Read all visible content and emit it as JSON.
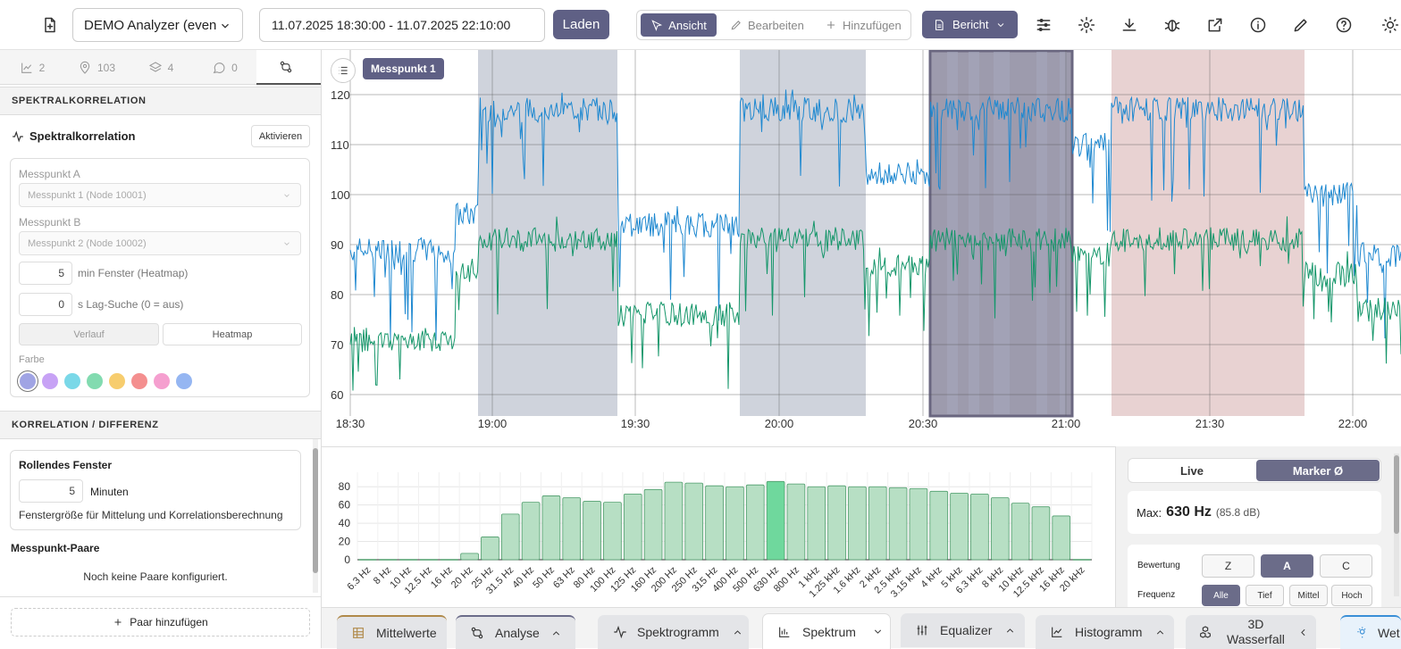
{
  "toolbar": {
    "analyzer": "DEMO Analyzer (even",
    "daterange": "11.07.2025 18:30:00 - 11.07.2025 22:10:00",
    "load": "Laden",
    "mode_view": "Ansicht",
    "mode_edit": "Bearbeiten",
    "mode_add": "Hinzufügen",
    "report": "Bericht"
  },
  "left_tabs": [
    {
      "icon": "chart-icon",
      "count": "2"
    },
    {
      "icon": "location-pin-icon",
      "count": "103"
    },
    {
      "icon": "layers-icon",
      "count": "4"
    },
    {
      "icon": "comment-icon",
      "count": "0"
    },
    {
      "icon": "correlation-icon",
      "count": ""
    }
  ],
  "spectral": {
    "section": "SPEKTRALKORRELATION",
    "title": "Spektralkorrelation",
    "activate": "Aktivieren",
    "point_a_label": "Messpunkt A",
    "point_a": "Messpunkt 1 (Node 10001)",
    "point_b_label": "Messpunkt B",
    "point_b": "Messpunkt 2 (Node 10002)",
    "window_value": "5",
    "window_label": "min Fenster (Heatmap)",
    "lag_value": "0",
    "lag_label": "s Lag-Suche (0 = aus)",
    "btn_history": "Verlauf",
    "btn_heatmap": "Heatmap",
    "color_label": "Farbe",
    "colors": [
      "#a0a4e4",
      "#c7a2f5",
      "#7ad8e8",
      "#82dbb0",
      "#f7cd6e",
      "#f48f8f",
      "#f59fcf",
      "#95b6f2"
    ]
  },
  "corr": {
    "section": "KORRELATION / DIFFERENZ",
    "rolling_title": "Rollendes Fenster",
    "rolling_value": "5",
    "rolling_unit": "Minuten",
    "rolling_desc": "Fenstergröße für Mittelung und Korrelationsberechnung",
    "pairs_title": "Messpunkt-Paare",
    "pairs_empty": "Noch keine Paare konfiguriert.",
    "add_pair": "Paar hinzufügen"
  },
  "timechart": {
    "tag": "Messpunkt 1",
    "yticks": [
      "120",
      "110",
      "100",
      "90",
      "80",
      "70",
      "60"
    ],
    "xticks": [
      "18:30",
      "19:00",
      "19:30",
      "20:00",
      "20:30",
      "21:00",
      "21:30",
      "22:00"
    ]
  },
  "chart_data": {
    "type": "bar",
    "title": "",
    "xlabel": "",
    "ylabel": "",
    "ylim": [
      0,
      90
    ],
    "yticks": [
      "80",
      "60",
      "40",
      "20",
      "0"
    ],
    "categories": [
      "6.3 Hz",
      "8 Hz",
      "10 Hz",
      "12.5 Hz",
      "16 Hz",
      "20 Hz",
      "25 Hz",
      "31.5 Hz",
      "40 Hz",
      "50 Hz",
      "63 Hz",
      "80 Hz",
      "100 Hz",
      "125 Hz",
      "160 Hz",
      "200 Hz",
      "250 Hz",
      "315 Hz",
      "400 Hz",
      "500 Hz",
      "630 Hz",
      "800 Hz",
      "1 kHz",
      "1.25 kHz",
      "1.6 kHz",
      "2 kHz",
      "2.5 kHz",
      "3.15 kHz",
      "4 kHz",
      "5 kHz",
      "6.3 kHz",
      "8 kHz",
      "10 kHz",
      "12.5 kHz",
      "16 kHz",
      "20 kHz"
    ],
    "values": [
      0,
      0,
      0,
      0,
      0,
      7,
      25,
      50,
      63,
      70,
      68,
      64,
      63,
      72,
      77,
      85,
      84,
      81,
      80,
      82,
      85.8,
      83,
      80,
      81,
      80,
      80,
      79,
      78,
      75,
      73,
      72,
      68,
      62,
      58,
      48,
      0
    ],
    "highlight": "630 Hz",
    "bar_color": "#b7dfc4",
    "highlight_color": "#6fd89d"
  },
  "spectrum_panel": {
    "live": "Live",
    "marker": "Marker Ø",
    "max_label": "Max:",
    "max_value": "630 Hz",
    "max_db": "(85.8 dB)",
    "weight_label": "Bewertung",
    "weights": [
      "Z",
      "A",
      "C"
    ],
    "freq_label": "Frequenz",
    "freqs": [
      "Alle",
      "Tief",
      "Mittel",
      "Hoch"
    ]
  },
  "bottom_tabs": [
    "Mittelwerte",
    "Analyse",
    "Spektrogramm",
    "Spektrum",
    "Equalizer",
    "Histogramm",
    "3D",
    "Wasserfall",
    "Wet"
  ]
}
